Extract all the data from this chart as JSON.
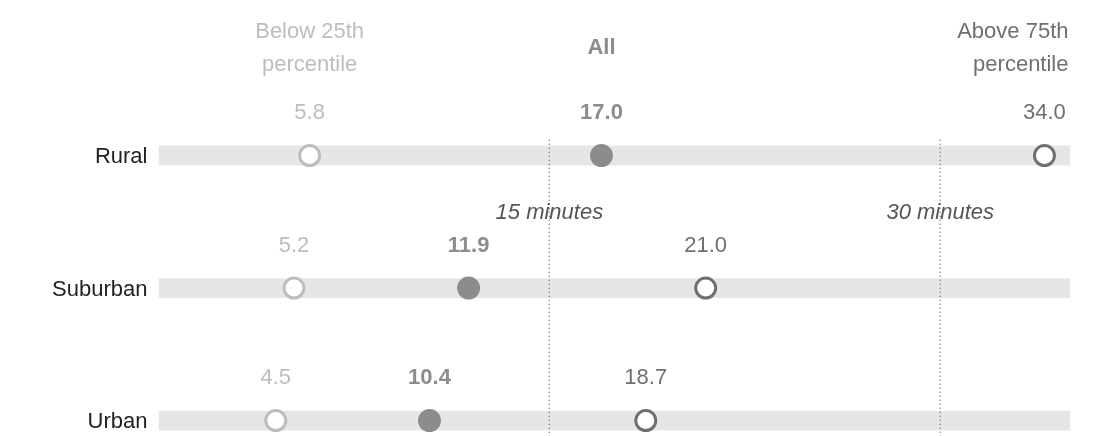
{
  "chart_data": {
    "type": "scatter",
    "orientation": "horizontal",
    "categories": [
      "Rural",
      "Suburban",
      "Urban"
    ],
    "series": [
      {
        "type": "bar",
        "color": "#e6e6e6",
        "values": [
          35,
          35,
          35
        ]
      },
      {
        "name": "Below 25th\npercentile",
        "color": "#bdbdbd",
        "values": [
          5.8,
          5.2,
          4.5
        ],
        "value_labels": [
          "5.8",
          "5.2",
          "4.5"
        ]
      },
      {
        "name": "All",
        "color": "#8c8c8c",
        "values": [
          17.0,
          11.9,
          10.4
        ],
        "value_labels": [
          "17.0",
          "11.9",
          "10.4"
        ]
      },
      {
        "name": "Above 75th\npercentile",
        "color": "#6f6f6f",
        "values": [
          34.0,
          21.0,
          18.7
        ],
        "value_labels": [
          "34.0",
          "21.0",
          "18.7"
        ]
      }
    ],
    "xlim": [
      0,
      35
    ],
    "marker": "circle",
    "tick_labels": "y",
    "ref_lines": [
      {
        "axis": "x",
        "value": 15,
        "label": "15 minutes"
      },
      {
        "axis": "x",
        "value": 30,
        "label": "30 minutes"
      }
    ]
  }
}
